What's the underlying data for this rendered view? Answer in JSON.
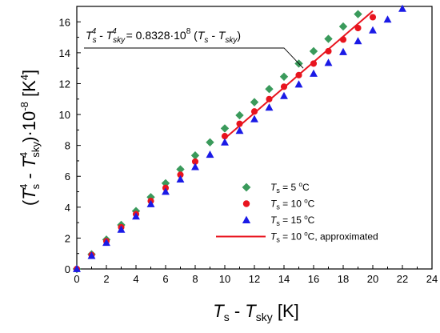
{
  "chart_data": {
    "type": "scatter",
    "xlabel": {
      "main": "T",
      "main_sub": "s",
      "sep": " - ",
      "second": "T",
      "second_sub": "sky",
      "unit": "  [K]"
    },
    "ylabel": {
      "open": "(",
      "t1": "T",
      "t1_sub": "s",
      "t1_sup": "4",
      "minus": " - ",
      "t2": "T",
      "t2_sub": "sky",
      "t2_sup": "4",
      "close": ")·10",
      "exp": "-8",
      "unit": "  [K",
      "unit_sup": "4",
      "unit_close": "]"
    },
    "xlim": [
      0,
      24
    ],
    "ylim": [
      0,
      17
    ],
    "x_ticks": [
      0,
      2,
      4,
      6,
      8,
      10,
      12,
      14,
      16,
      18,
      20,
      22,
      24
    ],
    "y_ticks": [
      0,
      2,
      4,
      6,
      8,
      10,
      12,
      14,
      16
    ],
    "grid": false,
    "legend_position": "lower-right",
    "annotation": {
      "lhs1": "T",
      "lhs1_sub": "s",
      "lhs1_sup": "4",
      "minus": " - ",
      "lhs2": "T",
      "lhs2_sub": "sky",
      "lhs2_sup": "4",
      "eq": " = 0.8328·10",
      "eq_sup": "8",
      "rhs_open": " (",
      "rhs1": "T",
      "rhs1_sub": "s",
      "rhs_minus": " - ",
      "rhs2": "T",
      "rhs2_sub": "sky",
      "rhs_close": ")",
      "pointer_at": [
        15.3,
        13.0
      ]
    },
    "series": [
      {
        "name": "Ts = 5 oC",
        "label_prefix": "T",
        "label_sub": "s",
        "label_mid": " = 5 ",
        "label_sup": "o",
        "label_suffix": "C",
        "marker": "diamond",
        "color": "#3a9a5b",
        "x": [
          0,
          1,
          2,
          3,
          4,
          5,
          6,
          7,
          8,
          9,
          10,
          11,
          12,
          13,
          14,
          15,
          16,
          17,
          18,
          19
        ],
        "y": [
          0,
          0.95,
          1.9,
          2.85,
          3.75,
          4.65,
          5.55,
          6.45,
          7.35,
          8.2,
          9.1,
          9.95,
          10.8,
          11.65,
          12.45,
          13.3,
          14.1,
          14.9,
          15.7,
          16.5
        ]
      },
      {
        "name": "Ts = 10 oC",
        "label_prefix": "T",
        "label_sub": "s",
        "label_mid": " = 10 ",
        "label_sup": "o",
        "label_suffix": "C",
        "marker": "circle",
        "color": "#e8141e",
        "x": [
          0,
          1,
          2,
          3,
          4,
          5,
          6,
          7,
          8,
          10,
          11,
          12,
          13,
          14,
          15,
          16,
          17,
          18,
          19,
          20
        ],
        "y": [
          0,
          0.9,
          1.8,
          2.7,
          3.55,
          4.4,
          5.25,
          6.1,
          6.95,
          8.6,
          9.4,
          10.2,
          11.0,
          11.8,
          12.55,
          13.3,
          14.1,
          14.85,
          15.6,
          16.3
        ]
      },
      {
        "name": "Ts = 15 oC",
        "label_prefix": "T",
        "label_sub": "s",
        "label_mid": " = 15 ",
        "label_sup": "o",
        "label_suffix": "C",
        "marker": "triangle",
        "color": "#1a1ae6",
        "x": [
          0,
          1,
          2,
          3,
          4,
          5,
          6,
          7,
          8,
          9,
          10,
          11,
          12,
          13,
          14,
          15,
          16,
          17,
          18,
          19,
          20,
          21,
          22
        ],
        "y": [
          0,
          0.85,
          1.7,
          2.55,
          3.4,
          4.2,
          5.0,
          5.8,
          6.6,
          7.4,
          8.2,
          8.95,
          9.7,
          10.45,
          11.2,
          11.95,
          12.65,
          13.35,
          14.05,
          14.75,
          15.45,
          16.15,
          16.85
        ]
      }
    ],
    "fit_line": {
      "name": "Ts = 10 oC, approximated",
      "label_prefix": "T",
      "label_sub": "s",
      "label_mid": " = 10 ",
      "label_sup": "o",
      "label_suffix": "C, approximated",
      "color": "#e8141e",
      "x": [
        10,
        20
      ],
      "y": [
        8.45,
        16.7
      ]
    }
  }
}
